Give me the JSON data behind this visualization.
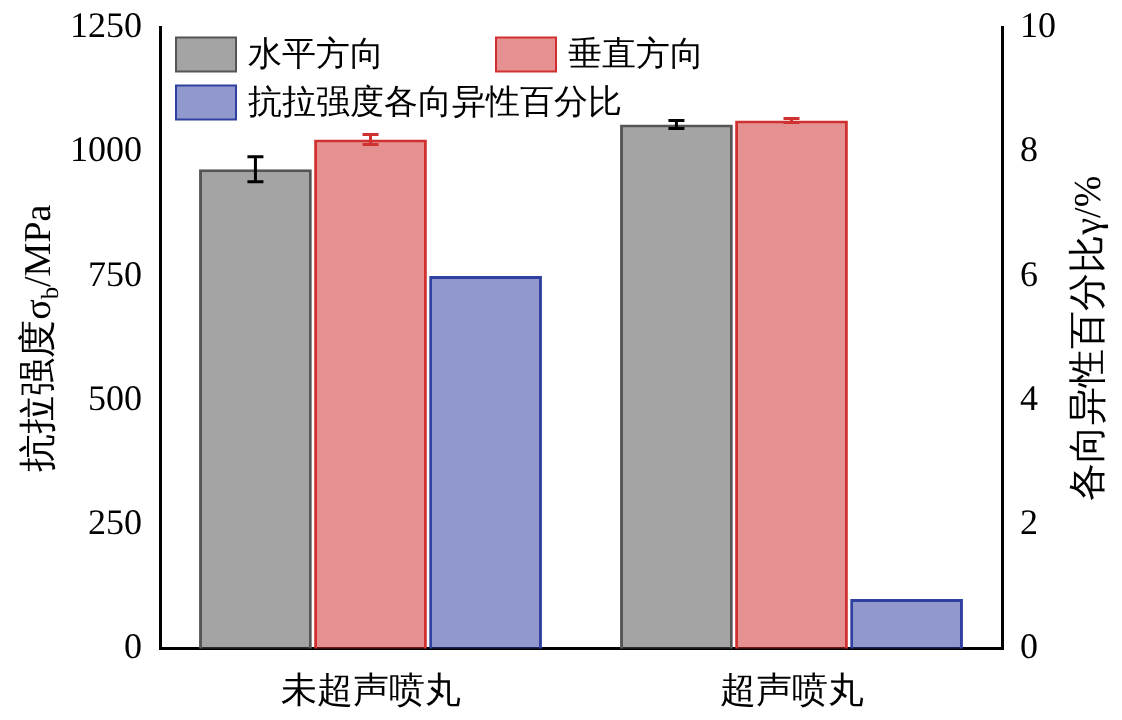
{
  "chart_data": {
    "type": "bar",
    "ylabel": "抗拉强度σ$_{b}$/MPa",
    "y2label": "各向异性百分比γ/%",
    "categories": [
      "未超声喷丸",
      "超声喷丸"
    ],
    "series": [
      {
        "name": "水平方向",
        "color": "#555555",
        "values": [
          965,
          1055
        ],
        "errors": [
          25,
          8
        ]
      },
      {
        "name": "垂直方向",
        "color": "#d03030",
        "values": [
          1025,
          1063
        ],
        "errors": [
          10,
          4
        ]
      },
      {
        "name": "抗拉强度各向异性百分比",
        "color": "#3040a0",
        "values": [
          6.0,
          0.8
        ],
        "axis": "y2"
      }
    ],
    "ylim": [
      0,
      1250
    ],
    "yticks": [
      0,
      250,
      500,
      750,
      1000,
      1250
    ],
    "y2lim": [
      0,
      10
    ],
    "y2ticks": [
      0,
      2,
      4,
      6,
      8,
      10
    ],
    "legend": "top left",
    "grid": false
  }
}
